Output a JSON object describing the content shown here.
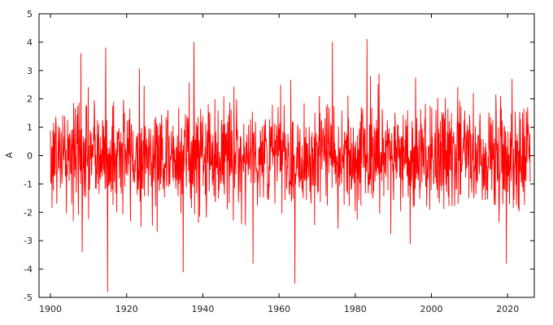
{
  "chart_data": {
    "type": "line",
    "title": "",
    "xlabel": "",
    "ylabel": "A",
    "xlim": [
      1897,
      2027
    ],
    "ylim": [
      -5,
      5
    ],
    "x_ticks": [
      1900,
      1920,
      1940,
      1960,
      1980,
      2000,
      2020
    ],
    "y_ticks": [
      -5,
      -4,
      -3,
      -2,
      -1,
      0,
      1,
      2,
      3,
      4,
      5
    ],
    "grid": false,
    "legend": "none",
    "series_color": "#ff0000",
    "series": [
      {
        "x_start": 1900,
        "x_step": 0.0833333,
        "n_points": 1512,
        "std": 1.0,
        "notable_values": [
          {
            "x": 1908.0,
            "y": 3.6
          },
          {
            "x": 1908.3,
            "y": -3.4
          },
          {
            "x": 1914.5,
            "y": 3.8
          },
          {
            "x": 1915.0,
            "y": -4.8
          },
          {
            "x": 1934.8,
            "y": -4.1
          },
          {
            "x": 1937.7,
            "y": 4.0
          },
          {
            "x": 1953.2,
            "y": -3.8
          },
          {
            "x": 1964.2,
            "y": -4.5
          },
          {
            "x": 1974.0,
            "y": 4.0
          },
          {
            "x": 1983.1,
            "y": 4.1
          },
          {
            "x": 2019.7,
            "y": -3.8
          }
        ]
      }
    ]
  }
}
